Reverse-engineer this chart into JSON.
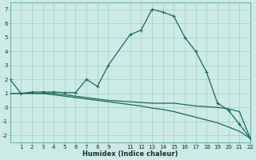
{
  "xlabel": "Humidex (Indice chaleur)",
  "bg_color": "#cceae6",
  "grid_color": "#aad4d0",
  "line_color": "#1a6b5a",
  "xlim": [
    0,
    22
  ],
  "ylim": [
    -2.5,
    7.5
  ],
  "xticks": [
    1,
    2,
    3,
    4,
    5,
    6,
    7,
    8,
    9,
    11,
    12,
    13,
    14,
    15,
    16,
    17,
    18,
    19,
    20,
    21,
    22
  ],
  "yticks": [
    -2,
    -1,
    0,
    1,
    2,
    3,
    4,
    5,
    6,
    7
  ],
  "line1_x": [
    0,
    1,
    2,
    3,
    4,
    5,
    6,
    7,
    8,
    9,
    11,
    12,
    13,
    14,
    15,
    16,
    17,
    18,
    19,
    20,
    21,
    22
  ],
  "line1_y": [
    2.0,
    1.0,
    1.1,
    1.1,
    1.1,
    1.05,
    1.05,
    2.0,
    1.5,
    3.0,
    5.2,
    5.5,
    7.0,
    6.8,
    6.5,
    5.0,
    4.0,
    2.5,
    0.3,
    -0.2,
    -1.2,
    -2.2
  ],
  "line2_x": [
    0,
    1,
    2,
    3,
    4,
    5,
    6,
    7,
    8,
    9,
    11,
    12,
    13,
    14,
    15,
    16,
    17,
    18,
    19,
    20,
    21,
    22
  ],
  "line2_y": [
    1.0,
    1.0,
    1.0,
    1.0,
    1.0,
    0.9,
    0.8,
    0.7,
    0.6,
    0.5,
    0.4,
    0.35,
    0.3,
    0.3,
    0.3,
    0.2,
    0.1,
    0.05,
    0.0,
    -0.1,
    -0.3,
    -2.2
  ],
  "line3_x": [
    0,
    1,
    2,
    3,
    4,
    5,
    6,
    7,
    8,
    9,
    11,
    12,
    13,
    14,
    15,
    16,
    17,
    18,
    19,
    20,
    21,
    22
  ],
  "line3_y": [
    1.0,
    1.0,
    1.0,
    1.0,
    0.9,
    0.8,
    0.7,
    0.6,
    0.5,
    0.4,
    0.2,
    0.1,
    -0.05,
    -0.15,
    -0.3,
    -0.5,
    -0.7,
    -0.9,
    -1.1,
    -1.4,
    -1.7,
    -2.2
  ]
}
